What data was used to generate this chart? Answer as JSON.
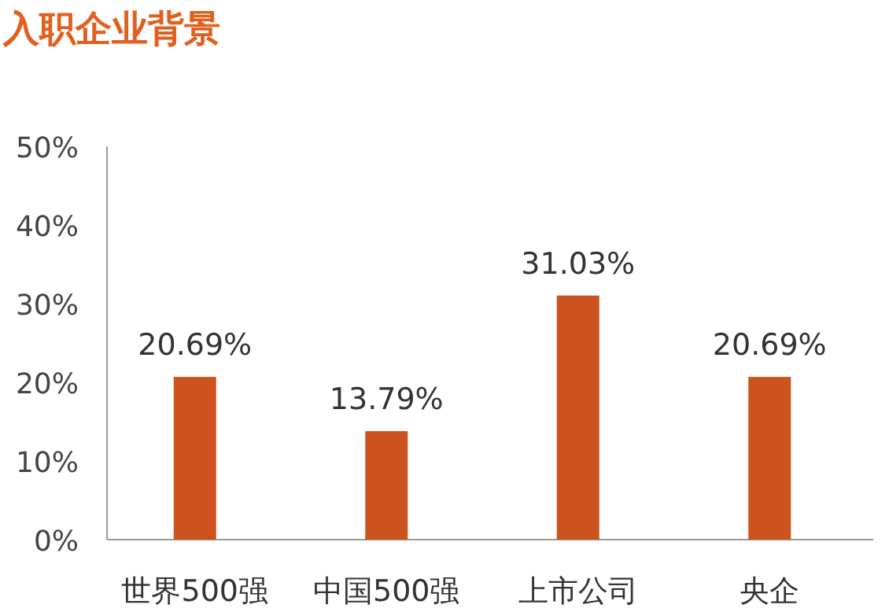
{
  "chart_data": {
    "type": "bar",
    "title": "入职企业背景",
    "categories": [
      "世界500强",
      "中国500强",
      "上市公司",
      "央企"
    ],
    "values": [
      20.69,
      13.79,
      31.03,
      20.69
    ],
    "value_labels": [
      "20.69%",
      "13.79%",
      "31.03%",
      "20.69%"
    ],
    "color": "#cc531e",
    "ylim": [
      0,
      50
    ],
    "yticks": [
      {
        "value": 0,
        "label": "0%"
      },
      {
        "value": 10,
        "label": "10%"
      },
      {
        "value": 20,
        "label": "20%"
      },
      {
        "value": 30,
        "label": "30%"
      },
      {
        "value": 40,
        "label": "40%"
      },
      {
        "value": 50,
        "label": "50%"
      }
    ],
    "grid": false
  }
}
